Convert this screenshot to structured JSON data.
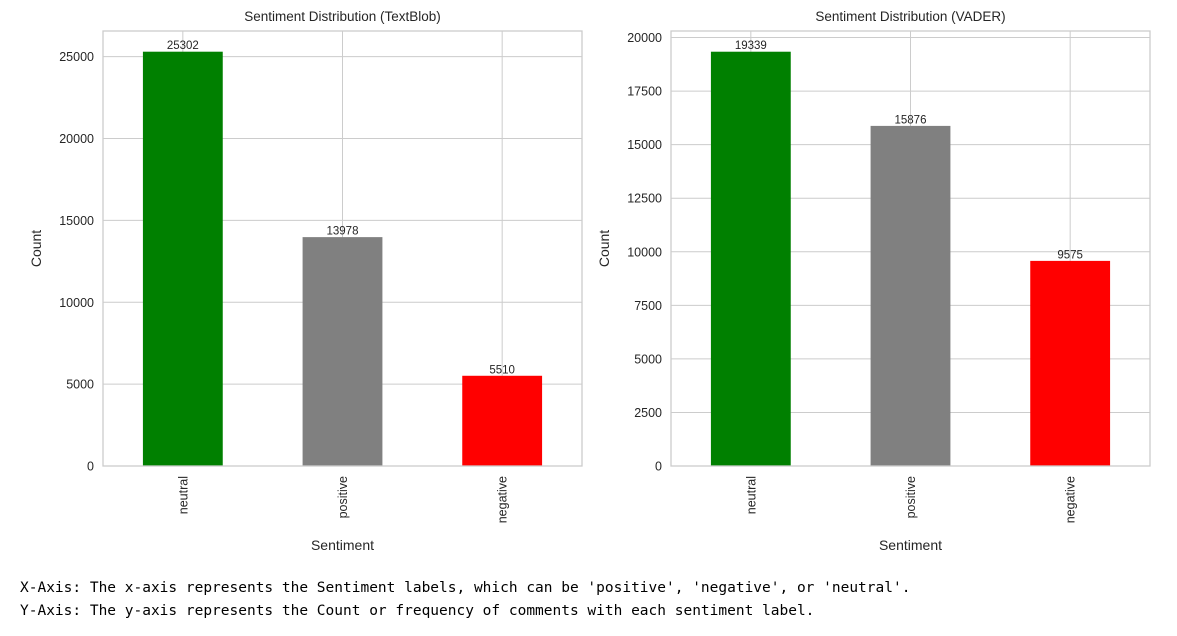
{
  "chart_data": [
    {
      "type": "bar",
      "title": "Sentiment Distribution (TextBlob)",
      "xlabel": "Sentiment",
      "ylabel": "Count",
      "categories": [
        "neutral",
        "positive",
        "negative"
      ],
      "values": [
        25302,
        13978,
        5510
      ],
      "colors": [
        "#008000",
        "#808080",
        "#ff0000"
      ],
      "ylim": [
        0,
        26566
      ],
      "yticks": [
        0,
        5000,
        10000,
        15000,
        20000,
        25000
      ],
      "grid": true,
      "legend": "none"
    },
    {
      "type": "bar",
      "title": "Sentiment Distribution (VADER)",
      "xlabel": "Sentiment",
      "ylabel": "Count",
      "categories": [
        "neutral",
        "positive",
        "negative"
      ],
      "values": [
        19339,
        15876,
        9575
      ],
      "colors": [
        "#008000",
        "#808080",
        "#ff0000"
      ],
      "ylim": [
        0,
        20306
      ],
      "yticks": [
        0,
        2500,
        5000,
        7500,
        10000,
        12500,
        15000,
        17500,
        20000
      ],
      "grid": true,
      "legend": "none"
    }
  ],
  "notes": {
    "x_axis": "X-Axis: The x-axis represents the Sentiment labels, which can be 'positive', 'negative', or 'neutral'.",
    "y_axis": "Y-Axis: The y-axis represents the Count or frequency of comments with each sentiment label."
  }
}
